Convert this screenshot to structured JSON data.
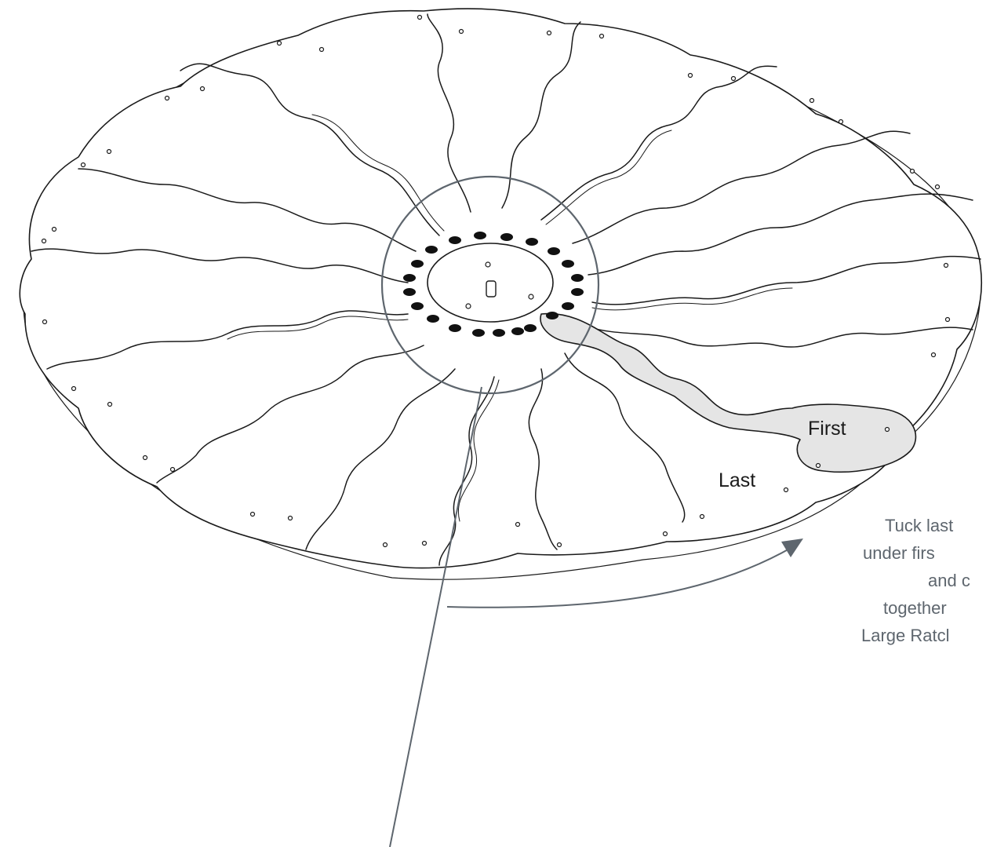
{
  "labels": {
    "first": "First",
    "last": "Last"
  },
  "callout": {
    "lines": [
      "Tuck last",
      "under firs",
      "and c",
      "together",
      "Large Ratcl"
    ]
  },
  "colors": {
    "linework": "#1a1a1a",
    "highlight_fill": "#e5e5e5",
    "callout_gray": "#5e666e",
    "hub_dots": "#111111"
  },
  "icons": {
    "arrow": "arrowhead-right",
    "magnifier_circle": "detail-circle"
  }
}
